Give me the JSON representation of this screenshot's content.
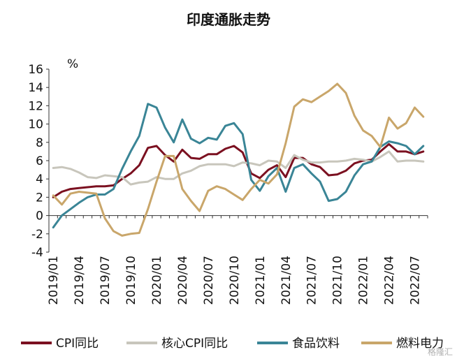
{
  "watermark": "格隆汇",
  "chart_data": {
    "type": "line",
    "title": "印度通胀走势",
    "unit_label": "%",
    "ylim": [
      -4,
      16
    ],
    "yticks": [
      -4,
      -2,
      0,
      2,
      4,
      6,
      8,
      10,
      12,
      14,
      16
    ],
    "x": [
      "2019/01",
      "2019/02",
      "2019/03",
      "2019/04",
      "2019/05",
      "2019/06",
      "2019/07",
      "2019/08",
      "2019/09",
      "2019/10",
      "2019/11",
      "2019/12",
      "2020/01",
      "2020/02",
      "2020/03",
      "2020/04",
      "2020/05",
      "2020/06",
      "2020/07",
      "2020/08",
      "2020/09",
      "2020/10",
      "2020/11",
      "2020/12",
      "2021/01",
      "2021/02",
      "2021/03",
      "2021/04",
      "2021/05",
      "2021/06",
      "2021/07",
      "2021/08",
      "2021/09",
      "2021/10",
      "2021/11",
      "2021/12",
      "2022/01",
      "2022/02",
      "2022/03",
      "2022/04",
      "2022/05",
      "2022/06",
      "2022/07",
      "2022/08"
    ],
    "xtick_labels": [
      "2019/01",
      "2019/04",
      "2019/07",
      "2019/10",
      "2020/01",
      "2020/04",
      "2020/07",
      "2020/10",
      "2021/01",
      "2021/04",
      "2021/07",
      "2021/10",
      "2022/01",
      "2022/04",
      "2022/07"
    ],
    "legend_position": "bottom",
    "grid": false,
    "series": [
      {
        "name": "CPI同比",
        "color": "#7b1020",
        "values": [
          2.0,
          2.6,
          2.9,
          3.0,
          3.1,
          3.2,
          3.2,
          3.3,
          4.0,
          4.6,
          5.5,
          7.4,
          7.6,
          6.6,
          5.9,
          7.2,
          6.3,
          6.2,
          6.7,
          6.7,
          7.3,
          7.6,
          6.9,
          4.6,
          4.1,
          5.0,
          5.5,
          4.2,
          6.3,
          6.3,
          5.6,
          5.3,
          4.4,
          4.5,
          4.9,
          5.7,
          6.0,
          6.1,
          7.0,
          7.8,
          7.0,
          7.0,
          6.7,
          7.0
        ]
      },
      {
        "name": "核心CPI同比",
        "color": "#c8c6bc",
        "values": [
          5.2,
          5.3,
          5.1,
          4.7,
          4.2,
          4.1,
          4.4,
          4.3,
          4.2,
          3.4,
          3.6,
          3.7,
          4.2,
          4.0,
          4.0,
          4.6,
          4.9,
          5.4,
          5.6,
          5.6,
          5.6,
          5.4,
          5.8,
          5.7,
          5.5,
          6.0,
          5.9,
          5.2,
          6.6,
          6.1,
          5.8,
          5.8,
          5.9,
          5.9,
          6.0,
          6.2,
          6.1,
          5.9,
          6.4,
          7.0,
          5.9,
          6.0,
          6.0,
          5.9
        ]
      },
      {
        "name": "食品饮料",
        "color": "#3a8596",
        "values": [
          -1.3,
          0.0,
          0.7,
          1.4,
          2.0,
          2.3,
          2.3,
          2.9,
          5.1,
          7.0,
          8.7,
          12.2,
          11.8,
          9.6,
          8.0,
          10.5,
          8.4,
          7.9,
          8.5,
          8.3,
          9.8,
          10.1,
          8.9,
          3.9,
          2.7,
          4.3,
          5.2,
          2.6,
          5.2,
          5.6,
          4.6,
          3.7,
          1.6,
          1.8,
          2.6,
          4.4,
          5.6,
          5.9,
          7.5,
          8.1,
          7.9,
          7.6,
          6.7,
          7.6
        ]
      },
      {
        "name": "燃料电力",
        "color": "#c9a66a",
        "values": [
          2.2,
          1.2,
          2.4,
          2.6,
          2.5,
          2.4,
          -0.3,
          -1.7,
          -2.2,
          -2.0,
          -1.9,
          0.7,
          3.7,
          6.5,
          6.5,
          2.9,
          1.6,
          0.5,
          2.7,
          3.2,
          2.9,
          2.3,
          1.7,
          2.9,
          3.9,
          3.5,
          4.5,
          7.9,
          11.9,
          12.7,
          12.4,
          13.0,
          13.6,
          14.4,
          13.4,
          10.9,
          9.3,
          8.7,
          7.5,
          10.7,
          9.5,
          10.1,
          11.8,
          10.8
        ]
      }
    ]
  }
}
